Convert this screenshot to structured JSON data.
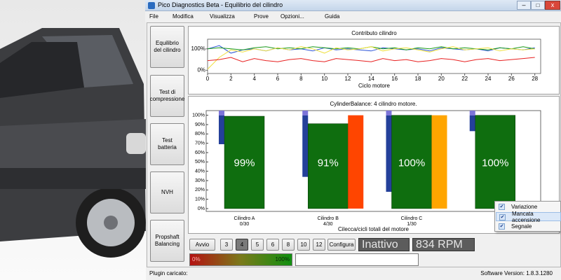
{
  "window": {
    "title": "Pico Diagnostics Beta - Equilibrio del cilindro",
    "menu": [
      "File",
      "Modifica",
      "Visualizza",
      "Prove",
      "Opzioni...",
      "Guida"
    ]
  },
  "sidebar": {
    "buttons": [
      "Equilibrio del cilindro",
      "Test di compressione",
      "Test batteria",
      "NVH",
      "Propshaft Balancing"
    ]
  },
  "chart_data": [
    {
      "type": "line",
      "title": "Contributo cilindro",
      "xlabel": "Ciclo motore",
      "x": [
        0,
        1,
        2,
        3,
        4,
        5,
        6,
        7,
        8,
        9,
        10,
        11,
        12,
        13,
        14,
        15,
        16,
        17,
        18,
        19,
        20,
        21,
        22,
        23,
        24,
        25,
        26,
        27,
        28
      ],
      "xlim": [
        0,
        28.5
      ],
      "xticks": [
        0,
        2,
        4,
        6,
        8,
        10,
        12,
        14,
        16,
        18,
        20,
        22,
        24,
        26,
        28
      ],
      "ylim": [
        -15,
        145
      ],
      "yticks": [
        {
          "value": 0,
          "label": "0%"
        },
        {
          "value": 100,
          "label": "100%"
        }
      ],
      "series": [
        {
          "color": "#2a52d8",
          "values": [
            100,
            115,
            80,
            95,
            100,
            90,
            105,
            95,
            100,
            90,
            105,
            95,
            100,
            95,
            90,
            105,
            100,
            95,
            100,
            90,
            105,
            100,
            95,
            100,
            90,
            105,
            100,
            95,
            105
          ]
        },
        {
          "color": "#1a9a1a",
          "values": [
            100,
            105,
            100,
            95,
            105,
            110,
            100,
            105,
            100,
            110,
            105,
            100,
            105,
            100,
            110,
            100,
            105,
            95,
            105,
            100,
            110,
            100,
            105,
            100,
            95,
            105,
            100,
            110,
            100
          ]
        },
        {
          "color": "#f0e040",
          "values": [
            5,
            60,
            95,
            85,
            100,
            90,
            105,
            95,
            110,
            100,
            80,
            105,
            95,
            100,
            110,
            90,
            100,
            105,
            95,
            85,
            100,
            110,
            95,
            100,
            105,
            90,
            100,
            95,
            100
          ]
        },
        {
          "color": "#e82020",
          "values": [
            45,
            50,
            60,
            40,
            55,
            45,
            40,
            50,
            55,
            45,
            40,
            55,
            50,
            45,
            40,
            55,
            45,
            50,
            40,
            45,
            55,
            50,
            40,
            50,
            55,
            45,
            50,
            55,
            60
          ]
        }
      ]
    },
    {
      "type": "bar",
      "title": "CylinderBalance: 4 cilindro motore.",
      "xlabel": "Cilecca/cicli totali del motore",
      "categories": [
        "Cilindro A",
        "Cilindro B",
        "Cilindro C",
        null
      ],
      "sublabels": [
        "0/30",
        "4/30",
        "1/30",
        null
      ],
      "ylim": [
        -3,
        105
      ],
      "yticks": [
        {
          "value": 0,
          "label": "0%"
        },
        {
          "value": 10,
          "label": "10%"
        },
        {
          "value": 20,
          "label": "20%"
        },
        {
          "value": 30,
          "label": "30%"
        },
        {
          "value": 40,
          "label": "40%"
        },
        {
          "value": 50,
          "label": "50%"
        },
        {
          "value": 60,
          "label": "60%"
        },
        {
          "value": 70,
          "label": "70%"
        },
        {
          "value": 80,
          "label": "80%"
        },
        {
          "value": 90,
          "label": "90%"
        },
        {
          "value": 100,
          "label": "100%"
        }
      ],
      "series": [
        {
          "name": "Variazione",
          "color": "#24409a",
          "values": [
            69,
            34,
            18,
            83
          ]
        },
        {
          "name": "Mancata accensione",
          "colors": [
            "#ff4500",
            "#ff4500",
            "#ffa500",
            "#ffa500"
          ],
          "values": [
            0,
            100,
            100,
            0
          ]
        },
        {
          "name": "Segnale",
          "color": "#0f6e0f",
          "values": [
            99,
            91,
            100,
            100
          ],
          "value_labels": [
            "99%",
            "91%",
            "100%",
            "100%"
          ]
        }
      ],
      "menu_highlight": 1
    }
  ],
  "controls": {
    "start": "Avvio",
    "cylinder_buttons": [
      "3",
      "4",
      "5",
      "6",
      "8",
      "10",
      "12"
    ],
    "selected_button": 1,
    "configure": "Configura",
    "status": "Inattivo",
    "rpm": "834 RPM"
  },
  "progress": {
    "min_label": "0%",
    "max_label": "100%"
  },
  "status_bar": {
    "plugin": "Plugin caricato:",
    "version": "Software Version: 1.8.3.1280"
  }
}
